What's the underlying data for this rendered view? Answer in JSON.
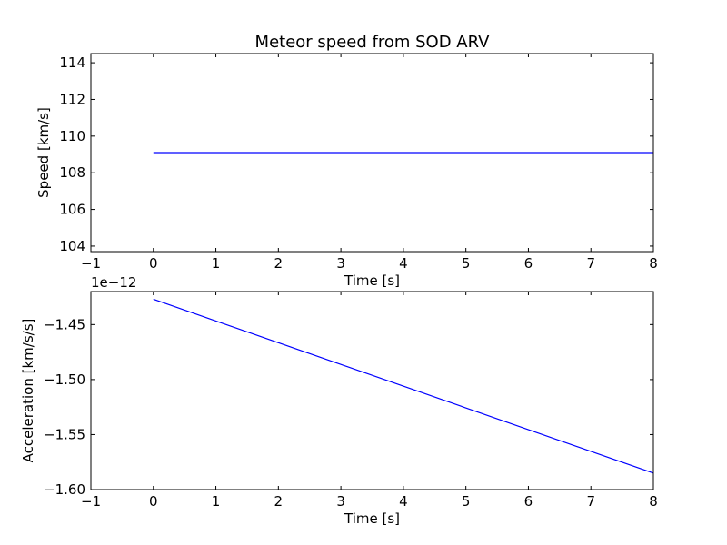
{
  "chart_data": [
    {
      "type": "line",
      "title": "Meteor speed from  SOD ARV",
      "xlabel": "Time [s]",
      "ylabel": "Speed [km/s]",
      "xlim": [
        -1,
        8
      ],
      "ylim": [
        103.7,
        114.5
      ],
      "xticks": [
        -1,
        0,
        1,
        2,
        3,
        4,
        5,
        6,
        7,
        8
      ],
      "xtick_labels": [
        "−1",
        "0",
        "1",
        "2",
        "3",
        "4",
        "5",
        "6",
        "7",
        "8"
      ],
      "yticks": [
        104,
        106,
        108,
        110,
        112,
        114
      ],
      "ytick_labels": [
        "104",
        "106",
        "108",
        "110",
        "112",
        "114"
      ],
      "offset_text": "",
      "series": [
        {
          "x": [
            0,
            8
          ],
          "y": [
            109.1,
            109.1
          ],
          "color": "#0000ff"
        }
      ]
    },
    {
      "type": "line",
      "title": "",
      "xlabel": "Time [s]",
      "ylabel": "Acceleration [km/s/s]",
      "xlim": [
        -1,
        8
      ],
      "ylim": [
        -1.6,
        -1.42
      ],
      "xticks": [
        -1,
        0,
        1,
        2,
        3,
        4,
        5,
        6,
        7,
        8
      ],
      "xtick_labels": [
        "−1",
        "0",
        "1",
        "2",
        "3",
        "4",
        "5",
        "6",
        "7",
        "8"
      ],
      "yticks": [
        -1.6,
        -1.55,
        -1.5,
        -1.45
      ],
      "ytick_labels": [
        "−1.60",
        "−1.55",
        "−1.50",
        "−1.45"
      ],
      "offset_text": "1e−12",
      "series": [
        {
          "x": [
            0,
            8
          ],
          "y": [
            -1.427,
            -1.585
          ],
          "color": "#0000ff"
        }
      ]
    }
  ]
}
